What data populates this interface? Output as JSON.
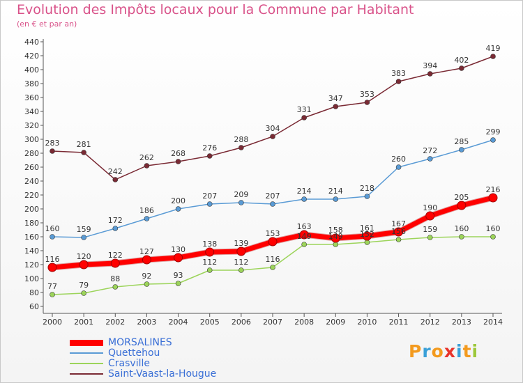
{
  "chart_data": {
    "type": "line",
    "title": "Evolution des Impôts locaux pour la Commune par Habitant",
    "subtitle": "(en € et par an)",
    "x": [
      2000,
      2001,
      2002,
      2003,
      2004,
      2005,
      2006,
      2007,
      2008,
      2009,
      2010,
      2011,
      2012,
      2013,
      2014
    ],
    "ylim": [
      60,
      440
    ],
    "ytick_step": 20,
    "grid": false,
    "legend_position": "bottom-left",
    "series": [
      {
        "name": "MORSALINES",
        "color": "#ff0000",
        "values": [
          116,
          120,
          122,
          127,
          130,
          138,
          139,
          153,
          163,
          158,
          161,
          167,
          190,
          205,
          216
        ]
      },
      {
        "name": "Quettehou",
        "color": "#5a9bd5",
        "values": [
          160,
          159,
          172,
          186,
          200,
          207,
          209,
          207,
          214,
          214,
          218,
          260,
          272,
          285,
          299
        ]
      },
      {
        "name": "Crasville",
        "color": "#9cd45a",
        "values": [
          77,
          79,
          88,
          92,
          93,
          112,
          112,
          116,
          149,
          149,
          152,
          156,
          159,
          160,
          160
        ]
      },
      {
        "name": "Saint-Vaast-la-Hougue",
        "color": "#7a2a34",
        "values": [
          283,
          281,
          242,
          262,
          268,
          276,
          288,
          304,
          331,
          347,
          353,
          383,
          394,
          402,
          419
        ]
      }
    ]
  },
  "logo": {
    "letters": [
      "P",
      "r",
      "o",
      "x",
      "i",
      "t",
      "i"
    ],
    "colors": [
      "#f39a1e",
      "#3aa0d8",
      "#f39a1e",
      "#e8332a",
      "#3aa0d8",
      "#f39a1e",
      "#9cc83a"
    ]
  }
}
